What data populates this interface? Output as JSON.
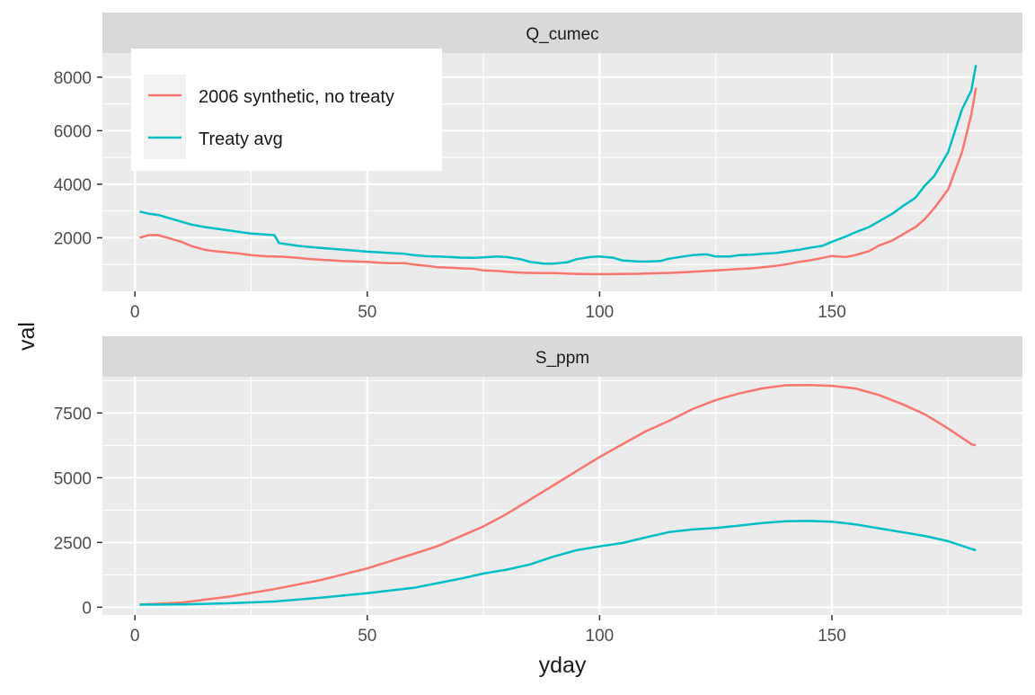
{
  "chart_data": [
    {
      "type": "line",
      "facet": "Q_cumec",
      "xlim": [
        -7,
        191
      ],
      "ylim": [
        0,
        8900
      ],
      "x_ticks": [
        0,
        50,
        100,
        150
      ],
      "y_ticks": [
        2000,
        4000,
        6000,
        8000
      ],
      "series": [
        {
          "name": "2006 synthetic, no treaty",
          "color": "#F8766D",
          "x": [
            1,
            3,
            5,
            7,
            10,
            12,
            15,
            17,
            20,
            22,
            25,
            28,
            30,
            32,
            35,
            38,
            40,
            45,
            50,
            53,
            55,
            58,
            60,
            63,
            65,
            68,
            70,
            73,
            75,
            78,
            80,
            83,
            85,
            88,
            90,
            93,
            95,
            98,
            100,
            103,
            105,
            108,
            110,
            113,
            115,
            118,
            120,
            123,
            125,
            128,
            130,
            133,
            135,
            138,
            140,
            143,
            145,
            148,
            150,
            153,
            155,
            158,
            160,
            163,
            165,
            168,
            170,
            172,
            175,
            178,
            180,
            181
          ],
          "y": [
            2000,
            2100,
            2100,
            2000,
            1850,
            1700,
            1550,
            1500,
            1450,
            1420,
            1350,
            1310,
            1300,
            1290,
            1250,
            1200,
            1180,
            1130,
            1100,
            1060,
            1050,
            1050,
            1000,
            950,
            900,
            880,
            860,
            840,
            780,
            760,
            730,
            700,
            690,
            680,
            680,
            660,
            650,
            640,
            640,
            640,
            650,
            650,
            660,
            680,
            690,
            710,
            730,
            760,
            780,
            810,
            830,
            860,
            900,
            950,
            1000,
            1100,
            1150,
            1250,
            1320,
            1280,
            1350,
            1500,
            1700,
            1900,
            2100,
            2400,
            2700,
            3100,
            3800,
            5200,
            6600,
            7600
          ]
        },
        {
          "name": "Treaty avg",
          "color": "#00BFC4",
          "x": [
            1,
            3,
            5,
            7,
            10,
            12,
            15,
            17,
            20,
            22,
            25,
            28,
            30,
            31,
            33,
            35,
            38,
            40,
            45,
            50,
            53,
            55,
            58,
            60,
            63,
            65,
            68,
            70,
            73,
            75,
            78,
            80,
            83,
            85,
            88,
            90,
            93,
            95,
            98,
            100,
            103,
            105,
            108,
            110,
            113,
            115,
            118,
            120,
            123,
            125,
            128,
            130,
            133,
            135,
            138,
            140,
            143,
            145,
            148,
            150,
            153,
            155,
            158,
            160,
            163,
            165,
            168,
            170,
            172,
            175,
            178,
            180,
            181
          ],
          "y": [
            2980,
            2900,
            2850,
            2750,
            2600,
            2500,
            2400,
            2350,
            2280,
            2230,
            2160,
            2120,
            2100,
            1800,
            1750,
            1700,
            1650,
            1620,
            1550,
            1480,
            1450,
            1430,
            1400,
            1350,
            1310,
            1300,
            1280,
            1260,
            1250,
            1270,
            1300,
            1280,
            1200,
            1100,
            1030,
            1030,
            1080,
            1200,
            1280,
            1300,
            1250,
            1150,
            1120,
            1110,
            1130,
            1220,
            1300,
            1350,
            1380,
            1300,
            1300,
            1350,
            1370,
            1400,
            1430,
            1480,
            1550,
            1620,
            1700,
            1850,
            2050,
            2200,
            2400,
            2600,
            2900,
            3150,
            3500,
            3950,
            4300,
            5200,
            6800,
            7500,
            8450
          ]
        }
      ]
    },
    {
      "type": "line",
      "facet": "S_ppm",
      "xlim": [
        -7,
        191
      ],
      "ylim": [
        -300,
        8900
      ],
      "x_ticks": [
        0,
        50,
        100,
        150
      ],
      "y_ticks": [
        0,
        2500,
        5000,
        7500
      ],
      "series": [
        {
          "name": "2006 synthetic, no treaty",
          "color": "#F8766D",
          "x": [
            1,
            10,
            20,
            30,
            40,
            50,
            55,
            60,
            65,
            70,
            75,
            80,
            85,
            90,
            95,
            100,
            105,
            110,
            115,
            120,
            125,
            130,
            135,
            140,
            145,
            150,
            155,
            160,
            165,
            170,
            175,
            180,
            181
          ],
          "y": [
            100,
            180,
            400,
            700,
            1050,
            1500,
            1780,
            2060,
            2350,
            2730,
            3120,
            3600,
            4150,
            4700,
            5250,
            5800,
            6300,
            6800,
            7200,
            7650,
            8000,
            8250,
            8450,
            8570,
            8580,
            8550,
            8450,
            8200,
            7850,
            7450,
            6900,
            6300,
            6250
          ]
        },
        {
          "name": "Treaty avg",
          "color": "#00BFC4",
          "x": [
            1,
            10,
            20,
            30,
            40,
            50,
            60,
            70,
            75,
            80,
            85,
            90,
            95,
            100,
            105,
            110,
            115,
            120,
            125,
            130,
            135,
            140,
            145,
            150,
            155,
            160,
            165,
            170,
            175,
            180,
            181
          ],
          "y": [
            100,
            110,
            150,
            220,
            370,
            540,
            750,
            1100,
            1300,
            1450,
            1650,
            1950,
            2200,
            2350,
            2480,
            2700,
            2900,
            3000,
            3060,
            3150,
            3250,
            3320,
            3330,
            3300,
            3200,
            3050,
            2900,
            2750,
            2550,
            2250,
            2200
          ]
        }
      ]
    }
  ],
  "legend": {
    "placement": "inside top-left",
    "entries": [
      {
        "label": "2006 synthetic, no treaty",
        "color": "#F8766D"
      },
      {
        "label": "Treaty avg",
        "color": "#00BFC4"
      }
    ]
  },
  "axes": {
    "xlabel": "yday",
    "ylabel": "val"
  },
  "colors": {
    "panel_bg": "#EBEBEB",
    "strip_bg": "#D9D9D9",
    "grid_major": "#FFFFFF",
    "tick_text": "#4D4D4D",
    "title_text": "#1A1A1A"
  }
}
